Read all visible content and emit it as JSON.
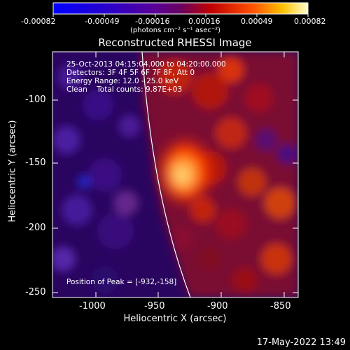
{
  "colorbar": {
    "tick_labels": [
      "-0.00082",
      "-0.00049",
      "-0.00016",
      "0.00016",
      "0.00049",
      "0.00082"
    ],
    "units_html": "(photons cm⁻² s⁻¹ asec⁻²)"
  },
  "title": "Reconstructed RHESSI Image",
  "info": {
    "line1": "25-Oct-2013 04:15:04.000 to 04:20:00.000",
    "line2": "Detectors: 3F 4F 5F 6F 7F 8F, Att 0",
    "line3": "Energy Range: 12.0 - 25.0 keV",
    "line4": "Clean    Total counts: 9.87E+03"
  },
  "peak_label": "Position of Peak = [-932,-158]",
  "axes": {
    "xlabel": "Heliocentric X (arcsec)",
    "ylabel": "Heliocentric Y (arcsec)",
    "xticks": [
      "-1000",
      "-950",
      "-900",
      "-850"
    ],
    "yticks": [
      "-100",
      "-150",
      "-200",
      "-250"
    ],
    "x_values": [
      -1000,
      -950,
      -900,
      -850
    ],
    "y_values": [
      -100,
      -150,
      -200,
      -250
    ]
  },
  "peak": {
    "x": -932,
    "y": -158
  },
  "footer_date": "17-May-2022 13:49"
}
